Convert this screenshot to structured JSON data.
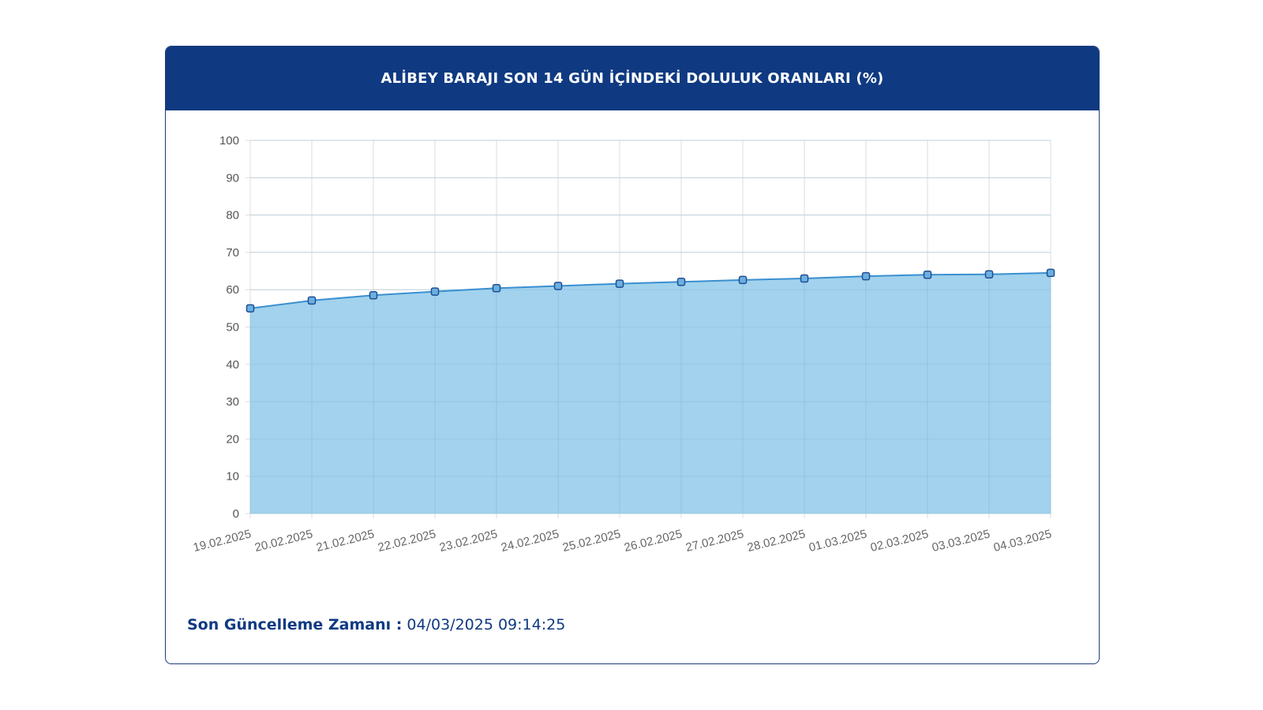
{
  "header": {
    "title": "ALİBEY BARAJI SON 14 GÜN İÇİNDEKİ DOLULUK ORANLARI (%)"
  },
  "footer": {
    "label": "Son Güncelleme Zamanı :",
    "value": "04/03/2025 09:14:25"
  },
  "colors": {
    "header_bg": "#0f3a82",
    "area_fill": "#9dd0ec",
    "line": "#3a8fd0",
    "point_fill": "#6bb0e0",
    "point_stroke": "#1f4f94",
    "grid": "#dddddd"
  },
  "chart_data": {
    "type": "area",
    "categories": [
      "19.02.2025",
      "20.02.2025",
      "21.02.2025",
      "22.02.2025",
      "23.02.2025",
      "24.02.2025",
      "25.02.2025",
      "26.02.2025",
      "27.02.2025",
      "28.02.2025",
      "01.03.2025",
      "02.03.2025",
      "03.03.2025",
      "04.03.2025"
    ],
    "values": [
      55,
      57.1,
      58.5,
      59.5,
      60.4,
      61,
      61.6,
      62.1,
      62.6,
      63,
      63.6,
      64,
      64.1,
      64.5
    ],
    "ylim": [
      0,
      100
    ],
    "yticks": [
      0,
      10,
      20,
      30,
      40,
      50,
      60,
      70,
      80,
      90,
      100
    ],
    "grid": true
  }
}
